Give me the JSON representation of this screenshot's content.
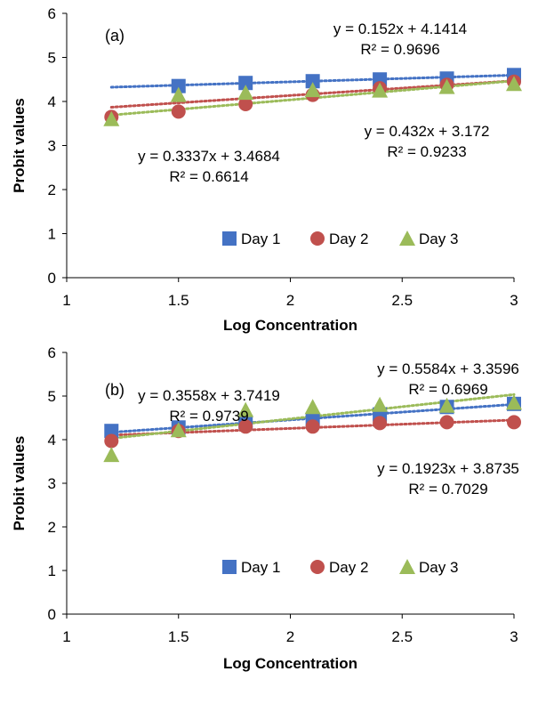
{
  "chart_data": [
    {
      "type": "scatter",
      "panel_label": "(a)",
      "xlabel": "Log Concentration",
      "ylabel": "Probit values",
      "xlim": [
        1,
        3
      ],
      "ylim": [
        0,
        6
      ],
      "xticks": [
        "1",
        "1.5",
        "2",
        "2.5",
        "3"
      ],
      "yticks": [
        "0",
        "1",
        "2",
        "3",
        "4",
        "5",
        "6"
      ],
      "grid": false,
      "legend_position": "bottom-right",
      "x": [
        1.2,
        1.5,
        1.8,
        2.1,
        2.4,
        2.7,
        3.0
      ],
      "series": [
        {
          "name": "Day 1",
          "marker": "square",
          "color": "#4472C4",
          "values": [
            null,
            4.35,
            4.42,
            4.46,
            4.5,
            4.52,
            4.6
          ],
          "trendline": {
            "slope": 0.152,
            "intercept": 4.1414,
            "x_range": [
              1.2,
              3.0
            ],
            "equation": "y = 0.152x + 4.1414",
            "r2": "R² = 0.9696"
          }
        },
        {
          "name": "Day 2",
          "marker": "circle",
          "color": "#C0504D",
          "values": [
            3.65,
            3.77,
            3.94,
            4.15,
            4.3,
            4.38,
            4.45
          ],
          "trendline": {
            "slope": 0.3337,
            "intercept": 3.4684,
            "x_range": [
              1.2,
              3.0
            ],
            "equation": "y = 0.3337x + 3.4684",
            "r2": "R² = 0.6614"
          }
        },
        {
          "name": "Day 3",
          "marker": "triangle",
          "color": "#9BBB59",
          "values": [
            3.6,
            4.15,
            4.2,
            4.26,
            4.25,
            4.33,
            4.4
          ],
          "trendline": {
            "slope": 0.432,
            "intercept": 3.172,
            "x_range": [
              1.2,
              3.0
            ],
            "equation": "y = 0.432x + 3.172",
            "r2": "R² = 0.9233"
          }
        }
      ]
    },
    {
      "type": "scatter",
      "panel_label": "(b)",
      "xlabel": "Log Concentration",
      "ylabel": "Probit values",
      "xlim": [
        1,
        3
      ],
      "ylim": [
        0,
        6
      ],
      "xticks": [
        "1",
        "1.5",
        "2",
        "2.5",
        "3"
      ],
      "yticks": [
        "0",
        "1",
        "2",
        "3",
        "4",
        "5",
        "6"
      ],
      "grid": false,
      "legend_position": "bottom-right",
      "x": [
        1.2,
        1.5,
        1.8,
        2.1,
        2.4,
        2.7,
        3.0
      ],
      "series": [
        {
          "name": "Day 1",
          "marker": "square",
          "color": "#4472C4",
          "values": [
            4.2,
            4.28,
            4.4,
            4.45,
            4.58,
            4.75,
            4.82
          ],
          "trendline": {
            "slope": 0.3558,
            "intercept": 3.7419,
            "x_range": [
              1.2,
              3.0
            ],
            "equation": "y = 0.3558x + 3.7419",
            "r2": "R² = 0.9739"
          }
        },
        {
          "name": "Day 2",
          "marker": "circle",
          "color": "#C0504D",
          "values": [
            3.97,
            4.2,
            4.3,
            4.3,
            4.38,
            4.4,
            4.4
          ],
          "trendline": {
            "slope": 0.1923,
            "intercept": 3.8735,
            "x_range": [
              1.2,
              3.0
            ],
            "equation": "y = 0.1923x + 3.8735",
            "r2": "R² = 0.7029"
          }
        },
        {
          "name": "Day 3",
          "marker": "triangle",
          "color": "#9BBB59",
          "values": [
            3.65,
            4.22,
            4.68,
            4.75,
            4.8,
            4.78,
            4.85
          ],
          "trendline": {
            "slope": 0.5584,
            "intercept": 3.3596,
            "x_range": [
              1.2,
              3.0
            ],
            "equation": "y = 0.5584x + 3.3596",
            "r2": "R² = 0.6969"
          }
        }
      ]
    }
  ]
}
